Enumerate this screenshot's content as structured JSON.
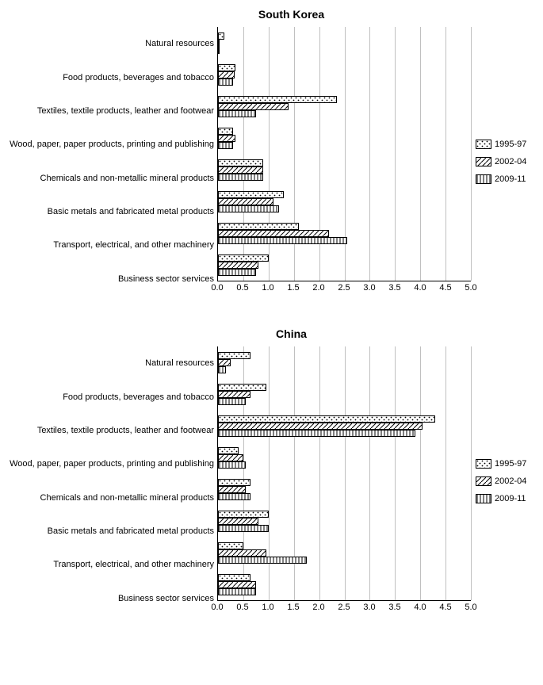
{
  "series": [
    {
      "key": "s1",
      "label": "1995-97",
      "patternClass": "pat-dots"
    },
    {
      "key": "s2",
      "label": "2002-04",
      "patternClass": "pat-diag"
    },
    {
      "key": "s3",
      "label": "2009-11",
      "patternClass": "pat-vert"
    }
  ],
  "axis": {
    "xmin": 0.0,
    "xmax": 5.0,
    "xtick_step": 0.5,
    "tick_labels": [
      "0.0",
      "0.5",
      "1.0",
      "1.5",
      "2.0",
      "2.5",
      "3.0",
      "3.5",
      "4.0",
      "4.5",
      "5.0"
    ],
    "grid_color": "#c0c0c0",
    "axis_color": "#000000",
    "label_fontsize": 11
  },
  "colors": {
    "background": "#ffffff",
    "bar_border": "#000000",
    "text": "#000000"
  },
  "charts": [
    {
      "title": "South Korea",
      "categories": [
        {
          "label": "Natural resources",
          "values": {
            "s1": 0.12,
            "s2": 0.03,
            "s3": 0.03
          }
        },
        {
          "label": "Food products, beverages and tobacco",
          "values": {
            "s1": 0.35,
            "s2": 0.33,
            "s3": 0.3
          }
        },
        {
          "label": "Textiles, textile products, leather and footwear",
          "values": {
            "s1": 2.35,
            "s2": 1.4,
            "s3": 0.75
          }
        },
        {
          "label": "Wood, paper, paper products, printing and publishing",
          "values": {
            "s1": 0.3,
            "s2": 0.35,
            "s3": 0.3
          }
        },
        {
          "label": "Chemicals and non-metallic mineral products",
          "values": {
            "s1": 0.9,
            "s2": 0.9,
            "s3": 0.9
          }
        },
        {
          "label": "Basic metals and fabricated metal products",
          "values": {
            "s1": 1.3,
            "s2": 1.1,
            "s3": 1.2
          }
        },
        {
          "label": "Transport, electrical, and other machinery",
          "values": {
            "s1": 1.6,
            "s2": 2.2,
            "s3": 2.55
          }
        },
        {
          "label": "Business sector services",
          "values": {
            "s1": 1.0,
            "s2": 0.8,
            "s3": 0.75
          }
        }
      ]
    },
    {
      "title": "China",
      "categories": [
        {
          "label": "Natural resources",
          "values": {
            "s1": 0.65,
            "s2": 0.25,
            "s3": 0.15
          }
        },
        {
          "label": "Food products, beverages and tobacco",
          "values": {
            "s1": 0.95,
            "s2": 0.65,
            "s3": 0.55
          }
        },
        {
          "label": "Textiles, textile products, leather and footwear",
          "values": {
            "s1": 4.3,
            "s2": 4.05,
            "s3": 3.9
          }
        },
        {
          "label": "Wood, paper, paper products, printing and publishing",
          "values": {
            "s1": 0.4,
            "s2": 0.5,
            "s3": 0.55
          }
        },
        {
          "label": "Chemicals and non-metallic mineral products",
          "values": {
            "s1": 0.65,
            "s2": 0.55,
            "s3": 0.65
          }
        },
        {
          "label": "Basic metals and fabricated metal products",
          "values": {
            "s1": 1.0,
            "s2": 0.8,
            "s3": 1.0
          }
        },
        {
          "label": "Transport, electrical, and other machinery",
          "values": {
            "s1": 0.5,
            "s2": 0.95,
            "s3": 1.75
          }
        },
        {
          "label": "Business sector services",
          "values": {
            "s1": 0.65,
            "s2": 0.75,
            "s3": 0.75
          }
        }
      ]
    }
  ]
}
